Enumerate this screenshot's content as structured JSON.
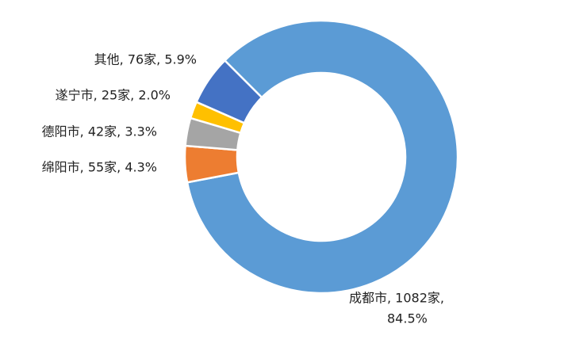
{
  "chart_data": {
    "type": "donut",
    "categories": [
      "成都市",
      "绵阳市",
      "德阳市",
      "遂宁市",
      "其他"
    ],
    "values": [
      1082,
      55,
      42,
      25,
      76
    ],
    "percents": [
      84.5,
      4.3,
      3.3,
      2.0,
      5.9
    ],
    "labels": [
      [
        "成都市, 1082家,",
        "84.5%"
      ],
      [
        "绵阳市, 55家, 4.3%"
      ],
      [
        "德阳市, 42家, 3.3%"
      ],
      [
        "遂宁市, 25家, 2.0%"
      ],
      [
        "其他, 76家, 5.9%"
      ]
    ],
    "colors": [
      "#5b9bd5",
      "#ed7d31",
      "#a5a5a5",
      "#ffc000",
      "#4472c4"
    ]
  }
}
